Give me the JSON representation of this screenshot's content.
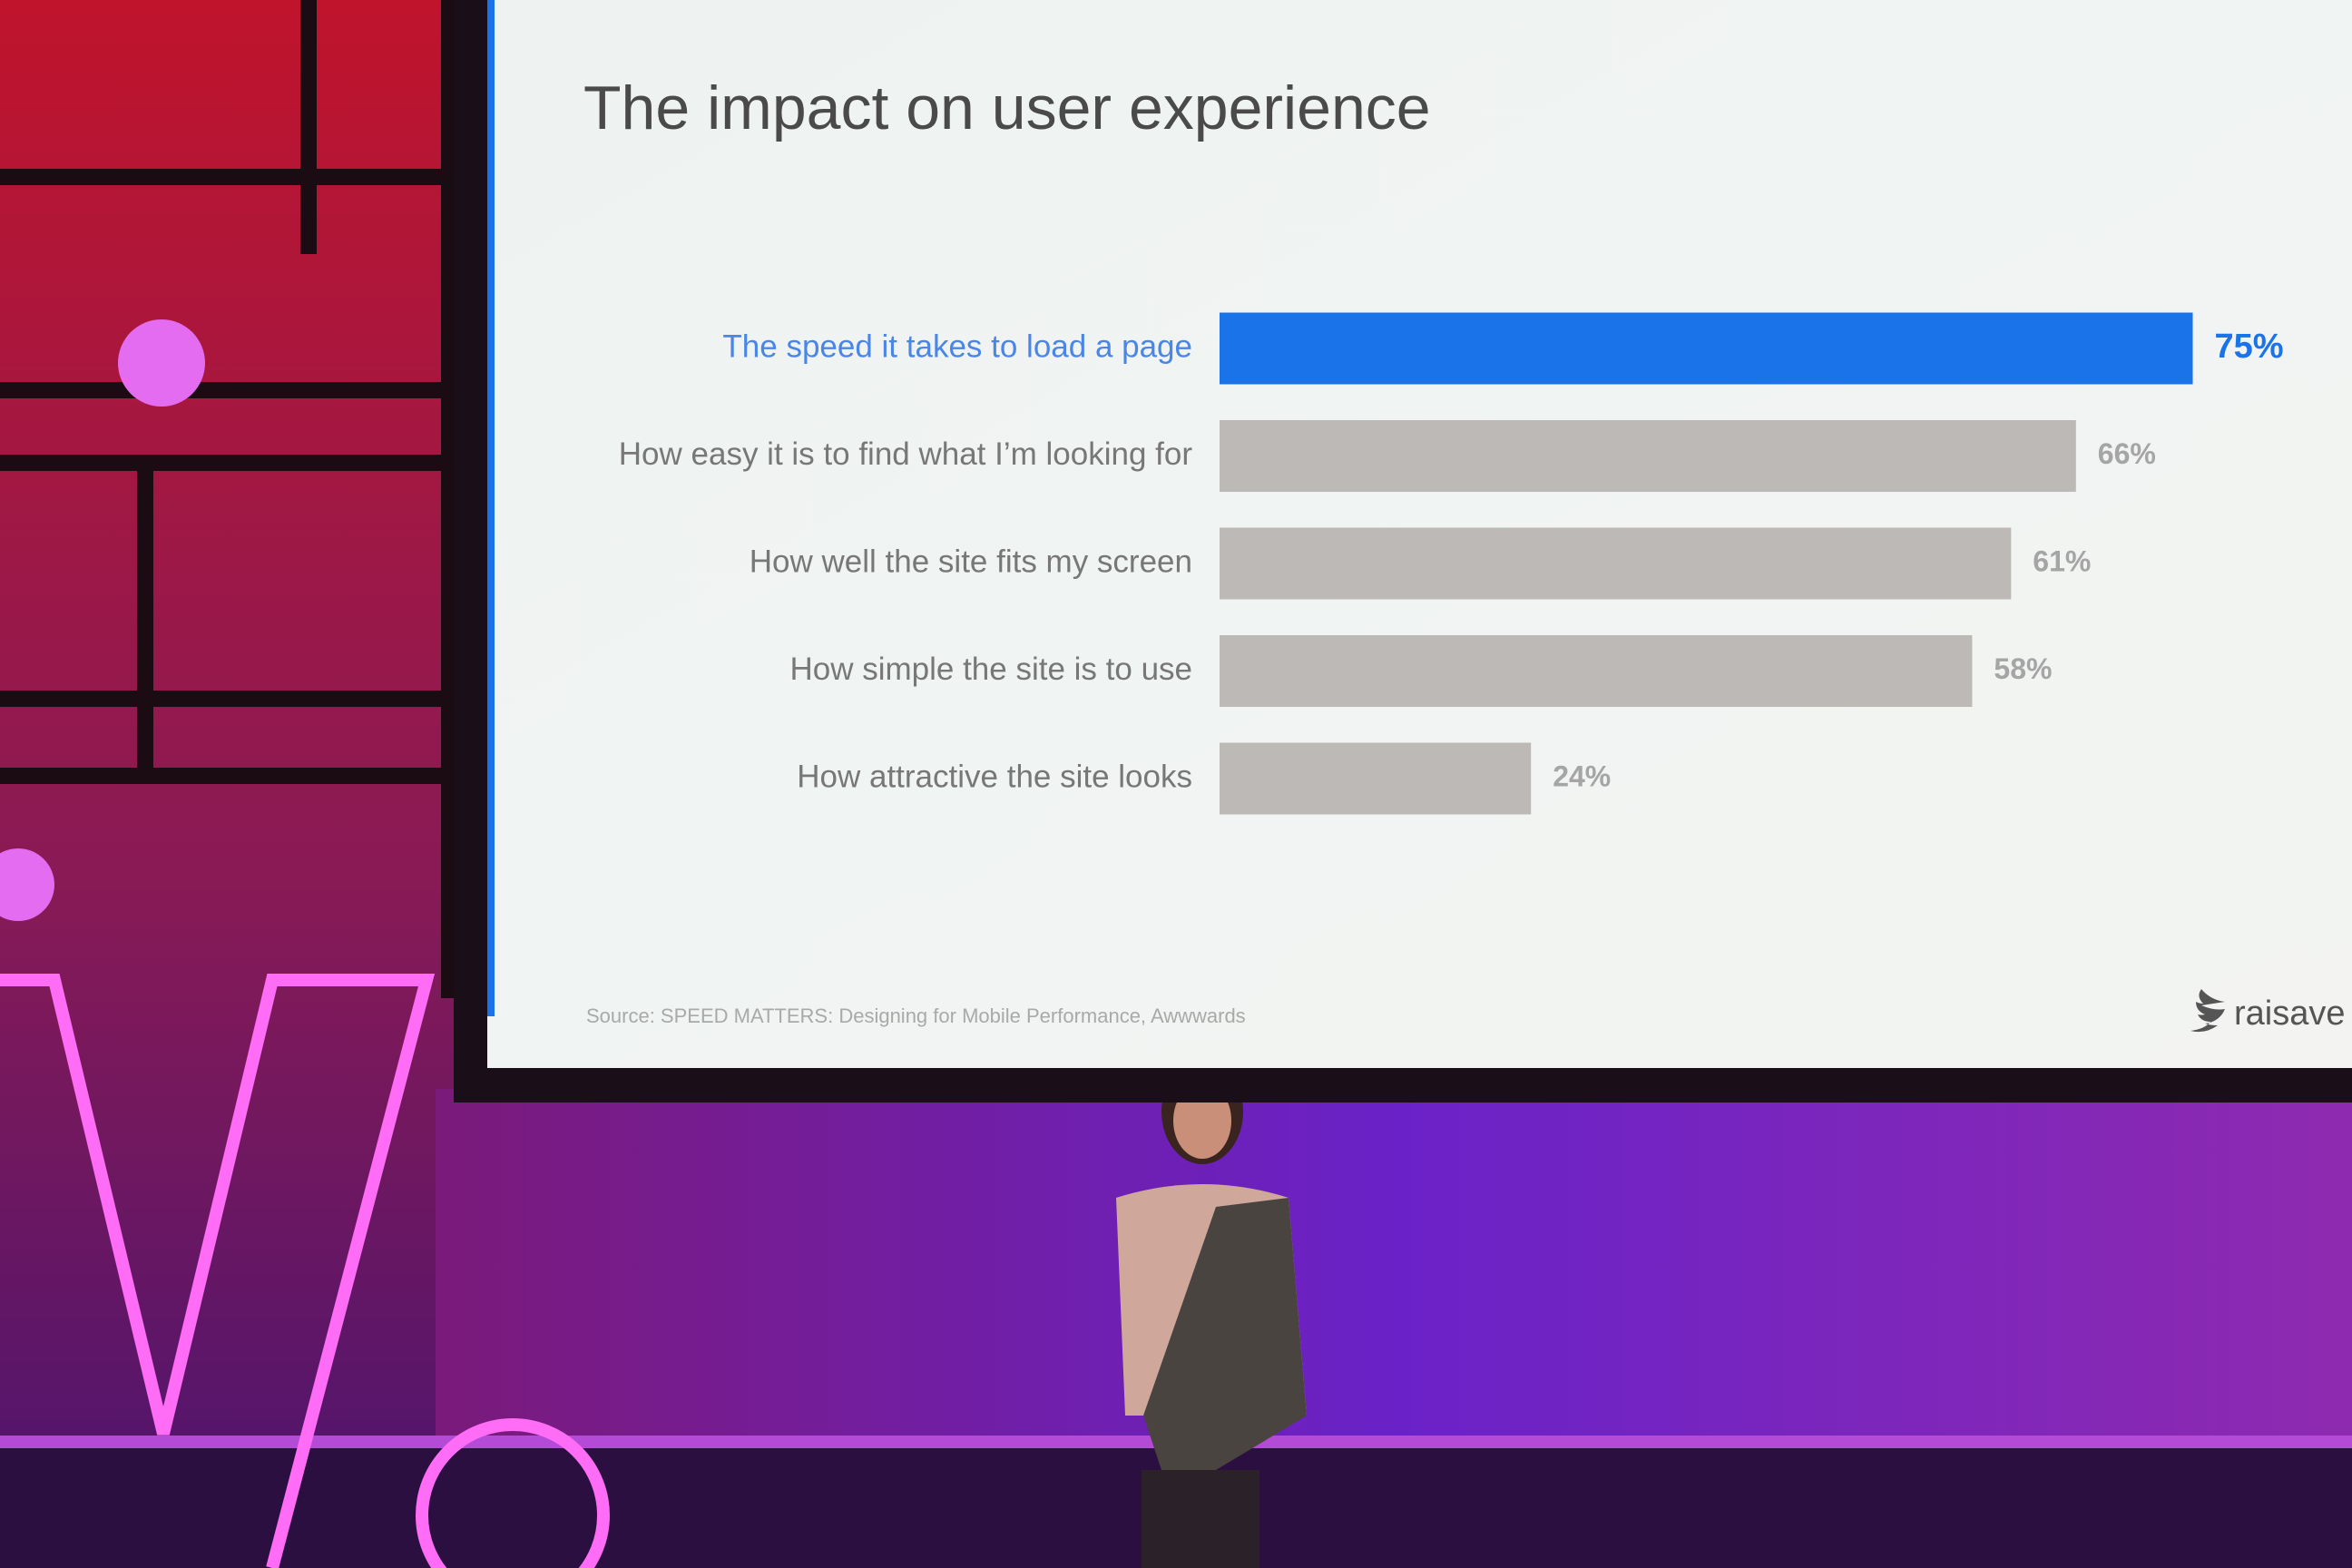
{
  "chart_data": {
    "type": "hbar",
    "title": "The impact on user experience",
    "categories": [
      "The speed it takes to load a page",
      "How easy it is to find what I’m looking for",
      "How well the site fits my screen",
      "How simple the site is to use",
      "How attractive the site looks"
    ],
    "values": [
      75,
      66,
      61,
      58,
      24
    ],
    "value_labels": [
      "75%",
      "66%",
      "61%",
      "58%",
      "24%"
    ],
    "colors": [
      "#1a73e8",
      "#bcb9b6",
      "#bcb9b6",
      "#bcb9b6",
      "#bcb9b6"
    ],
    "source": "Source: SPEED MATTERS: Designing for Mobile Performance, Awwwards",
    "handle": "raisave"
  }
}
